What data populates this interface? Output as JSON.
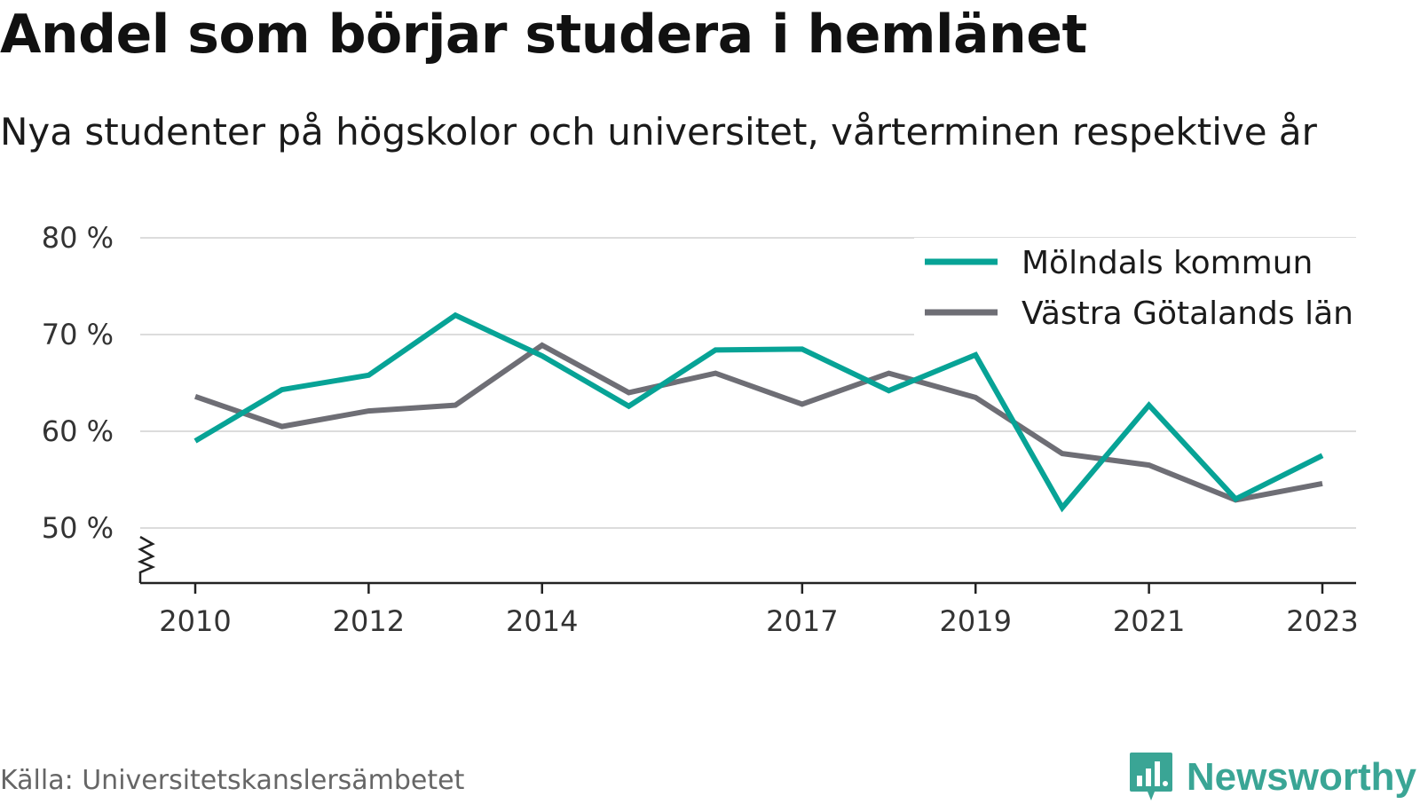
{
  "header": {
    "title": "Andel som börjar studera i hemlänet",
    "subtitle": "Nya studenter på högskolor och universitet, vårterminen respektive år"
  },
  "footer": {
    "source": "Källa: Universitetskanslersämbetet",
    "brand": "Newsworthy",
    "brand_icon": "bar-chart-speech-bubble-icon"
  },
  "colors": {
    "series_1": "#07a396",
    "series_2": "#6e6e75",
    "brand": "#3aa595"
  },
  "chart_data": {
    "type": "line",
    "title": "Andel som börjar studera i hemlänet",
    "subtitle": "Nya studenter på högskolor och universitet, vårterminen respektive år",
    "x": [
      2010,
      2011,
      2012,
      2013,
      2014,
      2015,
      2016,
      2017,
      2018,
      2019,
      2020,
      2021,
      2022,
      2023
    ],
    "x_ticks": [
      "2010",
      "2012",
      "2014",
      "2017",
      "2019",
      "2021",
      "2023"
    ],
    "y_ticks": [
      "50 %",
      "60 %",
      "70 %",
      "80 %"
    ],
    "y_tick_values": [
      50,
      60,
      70,
      80
    ],
    "ylim": [
      45,
      80
    ],
    "y_axis_break": true,
    "grid": true,
    "legend_position": "top-right",
    "series": [
      {
        "name": "Mölndals kommun",
        "color": "#07a396",
        "values": [
          59,
          64.3,
          65.8,
          72,
          67.8,
          62.6,
          68.4,
          68.5,
          64.2,
          67.9,
          52.1,
          62.7,
          53,
          57.5
        ]
      },
      {
        "name": "Västra Götalands län",
        "color": "#6e6e75",
        "values": [
          63.6,
          60.5,
          62.1,
          62.7,
          68.9,
          64,
          66,
          62.8,
          66,
          63.5,
          57.7,
          56.5,
          52.9,
          54.6
        ]
      }
    ]
  }
}
